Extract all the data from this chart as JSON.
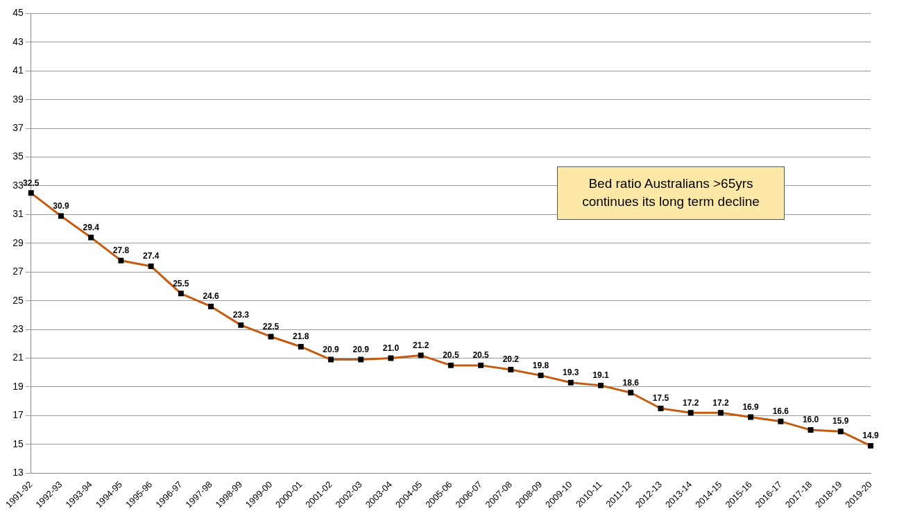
{
  "chart_data": {
    "type": "line",
    "categories": [
      "1991-92",
      "1992-93",
      "1993-94",
      "1994-95",
      "1995-96",
      "1996-97",
      "1997-98",
      "1998-99",
      "1999-00",
      "2000-01",
      "2001-02",
      "2002-03",
      "2003-04",
      "2004-05",
      "2005-06",
      "2006-07",
      "2007-08",
      "2008-09",
      "2009-10",
      "2010-11",
      "2011-12",
      "2012-13",
      "2013-14",
      "2014-15",
      "2015-16",
      "2016-17",
      "2017-18",
      "2018-19",
      "2019-20"
    ],
    "series": [
      {
        "color": "#c55a11",
        "values": [
          32.5,
          30.9,
          29.4,
          27.8,
          27.4,
          25.5,
          24.6,
          23.3,
          22.5,
          21.8,
          20.9,
          20.9,
          21.0,
          21.2,
          20.5,
          20.5,
          20.2,
          19.8,
          19.3,
          19.1,
          18.6,
          17.5,
          17.2,
          17.2,
          16.9,
          16.6,
          16.0,
          15.9,
          14.9
        ],
        "value_labels": [
          "32.5",
          "30.9",
          "29.4",
          "27.8",
          "27.4",
          "25.5",
          "24.6",
          "23.3",
          "22.5",
          "21.8",
          "20.9",
          "20.9",
          "21.0",
          "21.2",
          "20.5",
          "20.5",
          "20.2",
          "19.8",
          "19.3",
          "19.1",
          "18.6",
          "17.5",
          "17.2",
          "17.2",
          "16.9",
          "16.6",
          "16.0",
          "15.9",
          "14.9"
        ]
      }
    ],
    "ylim": [
      13,
      45
    ],
    "yticks": [
      13,
      15,
      17,
      19,
      21,
      23,
      25,
      27,
      29,
      31,
      33,
      35,
      37,
      39,
      41,
      43,
      45
    ],
    "grid": "y",
    "marker": "square",
    "line_style": "solid",
    "legend": false,
    "annotations": [
      "Bed ratio Australians >65yrs continues its long term decline"
    ]
  }
}
